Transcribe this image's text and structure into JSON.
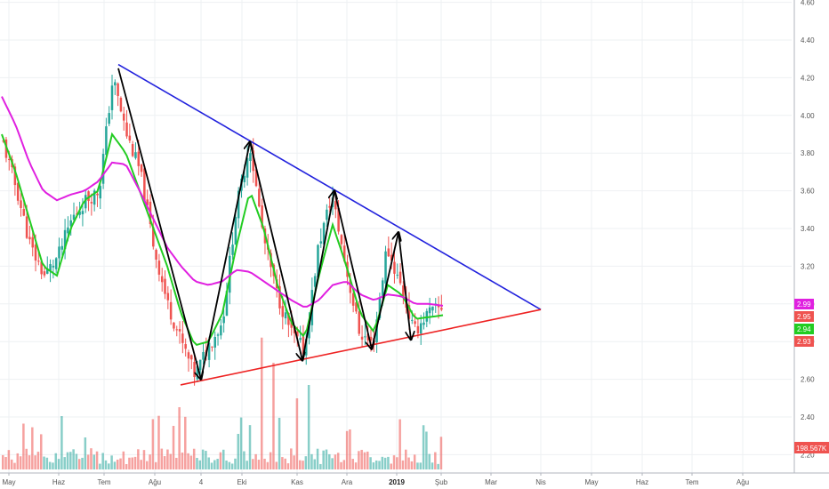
{
  "chart_data": {
    "type": "candlestick",
    "x_axis": {
      "tick_labels": [
        "May",
        "Haz",
        "Tem",
        "Ağu",
        "4",
        "Eki",
        "Kas",
        "Ara",
        "2019",
        "Şub",
        "Mar",
        "Nis",
        "May",
        "Haz",
        "Tem",
        "Ağu"
      ],
      "bold_labels": [
        "2019"
      ]
    },
    "y_axis": {
      "range": [
        2.12,
        4.6
      ],
      "tick_labels": [
        "4.60",
        "4.40",
        "4.20",
        "4.00",
        "3.80",
        "3.60",
        "3.40",
        "3.20",
        "3.00",
        "2.80",
        "2.60",
        "2.40",
        "2.20"
      ]
    },
    "grid": true,
    "series": [
      {
        "kind": "candles",
        "up_color": "#26a69a",
        "down_color": "#ef5350",
        "approx_close": [
          3.85,
          3.6,
          3.3,
          3.15,
          3.25,
          3.45,
          3.55,
          3.6,
          4.2,
          3.9,
          3.7,
          3.3,
          3.0,
          2.8,
          2.62,
          2.78,
          2.9,
          3.5,
          3.85,
          3.35,
          3.05,
          2.85,
          2.75,
          3.3,
          3.58,
          3.2,
          2.85,
          2.78,
          3.3,
          3.1,
          2.85,
          2.95,
          2.98
        ]
      },
      {
        "kind": "moving-average",
        "color": "#22cc22",
        "approx_values": [
          3.9,
          3.7,
          3.45,
          3.2,
          3.15,
          3.4,
          3.55,
          3.6,
          3.9,
          3.8,
          3.6,
          3.4,
          3.2,
          2.95,
          2.78,
          2.8,
          2.95,
          3.3,
          3.6,
          3.4,
          3.1,
          2.9,
          2.82,
          3.15,
          3.42,
          3.2,
          2.95,
          2.85,
          3.1,
          3.05,
          2.92,
          2.93,
          2.94
        ]
      },
      {
        "kind": "moving-average",
        "color": "#e020e0",
        "approx_values": [
          4.1,
          3.95,
          3.75,
          3.6,
          3.55,
          3.58,
          3.6,
          3.65,
          3.75,
          3.74,
          3.6,
          3.45,
          3.3,
          3.2,
          3.12,
          3.1,
          3.12,
          3.18,
          3.17,
          3.12,
          3.07,
          3.02,
          2.98,
          3.02,
          3.1,
          3.12,
          3.05,
          3.02,
          3.05,
          3.04,
          3.0,
          3.0,
          2.99
        ]
      }
    ],
    "trendlines": [
      {
        "name": "descending-resistance",
        "color": "#2222dd",
        "points": [
          [
            "Tem",
            4.27
          ],
          [
            "Nis",
            2.97
          ]
        ]
      },
      {
        "name": "ascending-support",
        "color": "#ee2222",
        "points": [
          [
            "Ağu",
            2.57
          ],
          [
            "Nis",
            2.97
          ]
        ]
      }
    ],
    "swing_arrows": {
      "color": "#000000",
      "approx_values": [
        4.25,
        2.6,
        3.86,
        2.7,
        3.6,
        2.76,
        3.38,
        2.81
      ]
    },
    "volume": {
      "tag": "198.567K",
      "tag_color": "#ef5350"
    },
    "price_tags": [
      {
        "label": "2.99",
        "color": "#e020e0"
      },
      {
        "label": "2.95",
        "color": "#ef5350"
      },
      {
        "label": "2.94",
        "color": "#22cc22"
      },
      {
        "label": "2.93",
        "color": "#ef5350"
      }
    ]
  }
}
